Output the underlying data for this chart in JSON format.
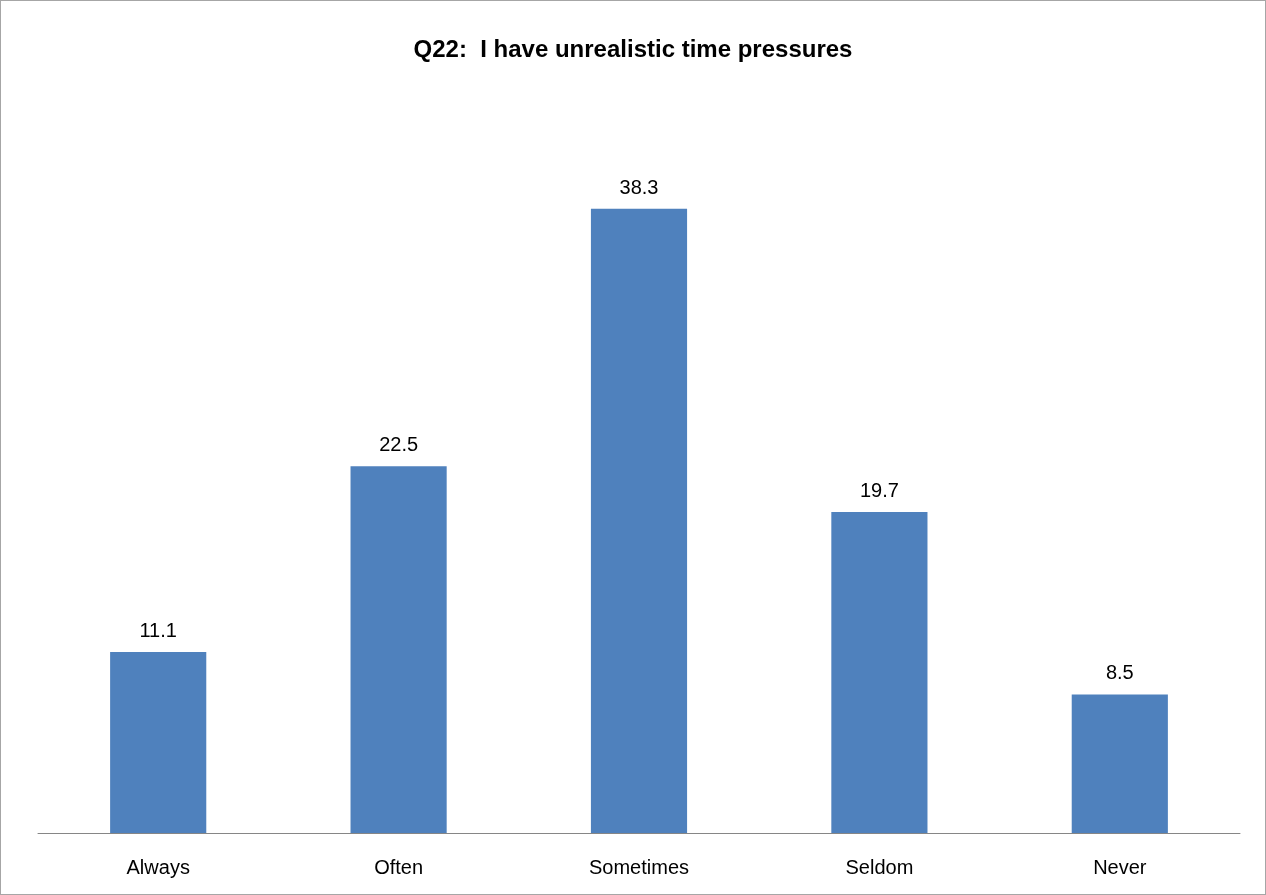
{
  "chart_data": {
    "type": "bar",
    "title": "Q22:  I have unrealistic time pressures",
    "categories": [
      "Always",
      "Often",
      "Sometimes",
      "Seldom",
      "Never"
    ],
    "values": [
      11.1,
      22.5,
      38.3,
      19.7,
      8.5
    ],
    "color": "#4f81bd",
    "data_labels": true
  }
}
